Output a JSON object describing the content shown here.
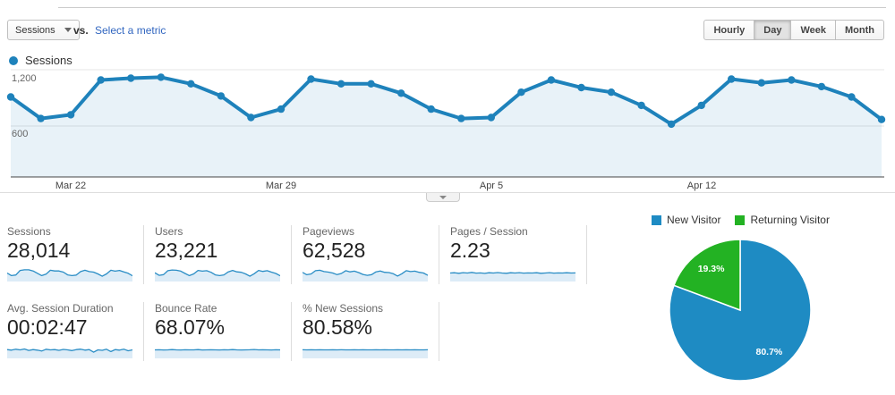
{
  "header": {
    "metric_selector": {
      "label": "Sessions"
    },
    "vs_label": "vs.",
    "select_metric_label": "Select a metric",
    "granularity": {
      "options": [
        "Hourly",
        "Day",
        "Week",
        "Month"
      ],
      "active": "Day"
    }
  },
  "legend": {
    "label": "Sessions"
  },
  "chart_data": [
    {
      "type": "area",
      "series_name": "Sessions",
      "values": [
        910,
        680,
        720,
        1090,
        1110,
        1120,
        1050,
        920,
        690,
        780,
        1100,
        1050,
        1050,
        950,
        780,
        680,
        690,
        960,
        1090,
        1010,
        960,
        820,
        620,
        820,
        1100,
        1060,
        1090,
        1020,
        910,
        670
      ],
      "x_labels": [
        "Mar 22",
        "Mar 29",
        "Apr 5",
        "Apr 12"
      ],
      "label_indices": [
        2,
        9,
        16,
        23
      ],
      "yticks": [
        600,
        1200
      ],
      "ytick_labels": [
        "600",
        "1,200"
      ],
      "ylim": [
        0,
        1260
      ],
      "grid": true,
      "line_color": "#1e82bb",
      "fill_color": "rgba(30,130,187,0.10)"
    },
    {
      "type": "pie",
      "labels": [
        "New Visitor",
        "Returning Visitor"
      ],
      "values": [
        80.7,
        19.3
      ],
      "value_labels": [
        "80.7%",
        "19.3%"
      ],
      "colors": [
        "#1e8bc3",
        "#23b223"
      ],
      "legend_position": "top"
    }
  ],
  "metrics": {
    "cards": [
      {
        "label": "Sessions",
        "value": "28,014",
        "spark": [
          0.5,
          0.28,
          0.33,
          0.72,
          0.78,
          0.78,
          0.68,
          0.48,
          0.28,
          0.4,
          0.74,
          0.68,
          0.68,
          0.58,
          0.34,
          0.28,
          0.32,
          0.62,
          0.74,
          0.62,
          0.58,
          0.42,
          0.22,
          0.42,
          0.74,
          0.66,
          0.72,
          0.6,
          0.48,
          0.26
        ]
      },
      {
        "label": "Users",
        "value": "23,221",
        "spark": [
          0.52,
          0.3,
          0.36,
          0.7,
          0.76,
          0.74,
          0.66,
          0.46,
          0.28,
          0.42,
          0.72,
          0.66,
          0.7,
          0.56,
          0.34,
          0.28,
          0.34,
          0.6,
          0.72,
          0.6,
          0.56,
          0.42,
          0.22,
          0.44,
          0.72,
          0.64,
          0.7,
          0.58,
          0.46,
          0.26
        ]
      },
      {
        "label": "Pageviews",
        "value": "62,528",
        "spark": [
          0.55,
          0.35,
          0.42,
          0.7,
          0.74,
          0.62,
          0.58,
          0.5,
          0.36,
          0.46,
          0.7,
          0.6,
          0.66,
          0.54,
          0.38,
          0.3,
          0.36,
          0.6,
          0.68,
          0.56,
          0.54,
          0.44,
          0.24,
          0.44,
          0.7,
          0.62,
          0.66,
          0.56,
          0.5,
          0.3
        ]
      },
      {
        "label": "Pages / Session",
        "value": "2.23",
        "spark": [
          0.5,
          0.52,
          0.48,
          0.53,
          0.5,
          0.55,
          0.49,
          0.51,
          0.47,
          0.52,
          0.5,
          0.54,
          0.5,
          0.48,
          0.52,
          0.5,
          0.53,
          0.49,
          0.51,
          0.5,
          0.52,
          0.48,
          0.5,
          0.53,
          0.49,
          0.51,
          0.5,
          0.52,
          0.5,
          0.51
        ]
      },
      {
        "label": "Avg. Session Duration",
        "value": "00:02:47",
        "spark": [
          0.52,
          0.48,
          0.55,
          0.5,
          0.58,
          0.45,
          0.52,
          0.48,
          0.4,
          0.55,
          0.5,
          0.52,
          0.46,
          0.54,
          0.5,
          0.44,
          0.52,
          0.56,
          0.48,
          0.52,
          0.3,
          0.5,
          0.46,
          0.55,
          0.35,
          0.52,
          0.48,
          0.56,
          0.42,
          0.5
        ]
      },
      {
        "label": "Bounce Rate",
        "value": "68.07%",
        "spark": [
          0.5,
          0.51,
          0.49,
          0.5,
          0.52,
          0.5,
          0.49,
          0.51,
          0.5,
          0.5,
          0.52,
          0.49,
          0.5,
          0.51,
          0.5,
          0.49,
          0.51,
          0.5,
          0.52,
          0.5,
          0.49,
          0.5,
          0.51,
          0.53,
          0.5,
          0.51,
          0.5,
          0.49,
          0.51,
          0.5
        ]
      },
      {
        "label": "% New Sessions",
        "value": "80.58%",
        "spark": [
          0.51,
          0.5,
          0.51,
          0.5,
          0.51,
          0.5,
          0.5,
          0.51,
          0.5,
          0.51,
          0.5,
          0.5,
          0.51,
          0.5,
          0.51,
          0.5,
          0.5,
          0.51,
          0.5,
          0.51,
          0.5,
          0.5,
          0.51,
          0.5,
          0.51,
          0.5,
          0.51,
          0.5,
          0.5,
          0.51
        ]
      }
    ]
  },
  "collapse_tab": {
    "direction": "down"
  }
}
